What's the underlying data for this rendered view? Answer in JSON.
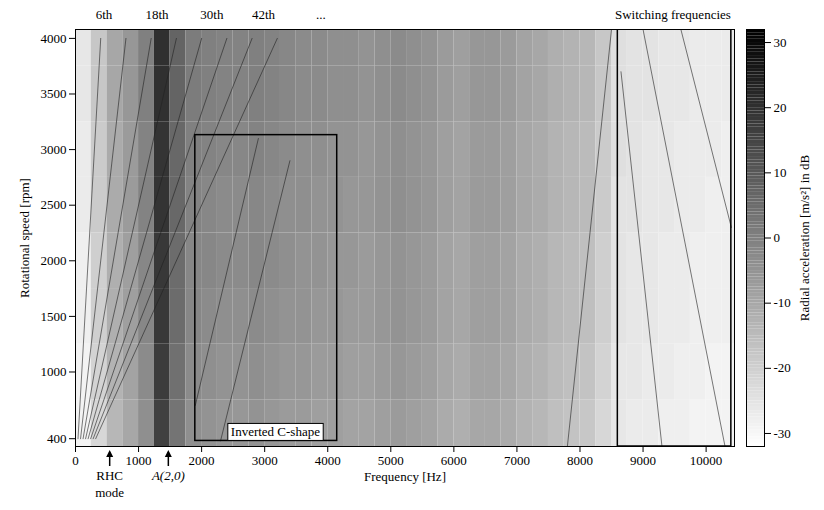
{
  "chart_data": {
    "type": "heatmap",
    "x_label": "Frequency [Hz]",
    "y_label": "Rotational speed [rpm]",
    "xlim": [
      0,
      10450
    ],
    "ylim": [
      330,
      4080
    ],
    "xticks": [
      0,
      1000,
      2000,
      3000,
      4000,
      5000,
      6000,
      7000,
      8000,
      9000,
      10000
    ],
    "yticks": [
      400,
      1000,
      1500,
      2000,
      2500,
      3000,
      3500,
      4000
    ],
    "grid": false,
    "heatmap": {
      "x_bins": [
        0,
        250,
        500,
        750,
        1000,
        1250,
        1500,
        1750,
        2000,
        2250,
        2500,
        2750,
        3000,
        3250,
        3500,
        3750,
        4000,
        4250,
        4500,
        4750,
        5000,
        5250,
        5500,
        5750,
        6000,
        6250,
        6500,
        6750,
        7000,
        7250,
        7500,
        7750,
        8000,
        8250,
        8500,
        8750,
        9000,
        9250,
        9500,
        9750,
        10000,
        10250,
        10500
      ],
      "y_bins": [
        250,
        750,
        1250,
        1750,
        2250,
        2750,
        3250,
        3750,
        4250
      ],
      "values": [
        [
          -29,
          -22,
          -14,
          -10,
          -4,
          16,
          3,
          -4,
          -5,
          -6,
          -6,
          -5,
          -6,
          -7,
          -7,
          -8,
          -8,
          -9,
          -9,
          -8,
          -7,
          -8,
          -9,
          -11,
          -12,
          -10,
          -10,
          -11,
          -13,
          -14,
          -16,
          -17,
          -18,
          -22,
          -26,
          -27,
          -27,
          -28,
          -28,
          -29,
          -29,
          -29
        ],
        [
          -29,
          -21,
          -13,
          -9,
          -3,
          17,
          4,
          -3,
          -4,
          -5,
          -5,
          -4,
          -5,
          -6,
          -6,
          -7,
          -7,
          -8,
          -8,
          -7,
          -6,
          -7,
          -8,
          -10,
          -11,
          -9,
          -9,
          -10,
          -12,
          -13,
          -15,
          -16,
          -17,
          -21,
          -26,
          -26,
          -27,
          -27,
          -28,
          -28,
          -29,
          -29
        ],
        [
          -28,
          -20,
          -12,
          -8,
          -2,
          18,
          5,
          -2,
          -3,
          -4,
          -4,
          -3,
          -4,
          -5,
          -5,
          -6,
          -6,
          -7,
          -7,
          -6,
          -5,
          -6,
          -7,
          -9,
          -10,
          -8,
          -8,
          -9,
          -11,
          -12,
          -14,
          -15,
          -16,
          -20,
          -25,
          -26,
          -26,
          -27,
          -27,
          -28,
          -28,
          -28
        ],
        [
          -28,
          -20,
          -12,
          -8,
          -2,
          18,
          5,
          -2,
          -2,
          -3,
          -3,
          -2,
          -3,
          -4,
          -5,
          -5,
          -6,
          -6,
          -7,
          -6,
          -5,
          -6,
          -7,
          -9,
          -10,
          -8,
          -8,
          -9,
          -11,
          -12,
          -14,
          -15,
          -16,
          -20,
          -25,
          -26,
          -26,
          -27,
          -27,
          -28,
          -28,
          -28
        ],
        [
          -27,
          -19,
          -11,
          -7,
          -1,
          19,
          6,
          -1,
          -2,
          -3,
          -3,
          -2,
          -3,
          -4,
          -4,
          -5,
          -5,
          -6,
          -6,
          -5,
          -4,
          -5,
          -6,
          -8,
          -9,
          -7,
          -7,
          -8,
          -10,
          -11,
          -13,
          -14,
          -15,
          -19,
          -25,
          -25,
          -26,
          -26,
          -27,
          -27,
          -28,
          -28
        ],
        [
          -27,
          -19,
          -11,
          -7,
          -1,
          19,
          6,
          0,
          -1,
          -2,
          -2,
          -1,
          -2,
          -3,
          -4,
          -4,
          -5,
          -5,
          -6,
          -5,
          -4,
          -5,
          -6,
          -8,
          -9,
          -7,
          -7,
          -8,
          -10,
          -11,
          -13,
          -14,
          -15,
          -19,
          -24,
          -25,
          -26,
          -26,
          -27,
          -27,
          -27,
          -28
        ],
        [
          -26,
          -18,
          -10,
          -6,
          0,
          20,
          7,
          1,
          0,
          -1,
          -1,
          0,
          -1,
          -2,
          -3,
          -3,
          -4,
          -4,
          -5,
          -4,
          -3,
          -4,
          -5,
          -7,
          -8,
          -6,
          -6,
          -7,
          -9,
          -10,
          -12,
          -13,
          -14,
          -18,
          -24,
          -25,
          -25,
          -26,
          -26,
          -27,
          -27,
          -27
        ],
        [
          -26,
          -18,
          -10,
          -6,
          0,
          20,
          7,
          1,
          0,
          -1,
          -1,
          0,
          -1,
          -2,
          -3,
          -3,
          -4,
          -4,
          -5,
          -4,
          -3,
          -4,
          -5,
          -7,
          -8,
          -6,
          -6,
          -7,
          -9,
          -10,
          -12,
          -13,
          -14,
          -18,
          -24,
          -25,
          -25,
          -26,
          -26,
          -27,
          -27,
          -27
        ]
      ]
    },
    "colorbar": {
      "label": "Radial acceleration [m/s²] in dB",
      "range": [
        -32,
        32
      ],
      "ticks": [
        -30,
        -20,
        -10,
        0,
        10,
        20,
        30
      ]
    },
    "lines": [
      {
        "x": [
          40,
          400
        ],
        "y": [
          400,
          4000
        ]
      },
      {
        "x": [
          80,
          800
        ],
        "y": [
          400,
          4000
        ]
      },
      {
        "x": [
          120,
          1200
        ],
        "y": [
          400,
          4000
        ]
      },
      {
        "x": [
          160,
          1600
        ],
        "y": [
          400,
          4000
        ]
      },
      {
        "x": [
          200,
          2000
        ],
        "y": [
          400,
          4000
        ]
      },
      {
        "x": [
          240,
          2400
        ],
        "y": [
          400,
          4000
        ]
      },
      {
        "x": [
          280,
          2800
        ],
        "y": [
          400,
          4000
        ]
      },
      {
        "x": [
          320,
          3200
        ],
        "y": [
          400,
          4000
        ]
      },
      {
        "x": [
          1900,
          2900
        ],
        "y": [
          700,
          3100
        ]
      },
      {
        "x": [
          2300,
          3400
        ],
        "y": [
          380,
          2900
        ]
      },
      {
        "x": [
          9000,
          10300
        ],
        "y": [
          4080,
          330
        ]
      },
      {
        "x": [
          8650,
          9300
        ],
        "y": [
          3700,
          330
        ]
      },
      {
        "x": [
          9600,
          10400
        ],
        "y": [
          4080,
          2300
        ]
      },
      {
        "x": [
          7800,
          8500
        ],
        "y": [
          330,
          4080
        ]
      }
    ],
    "order_labels": [
      {
        "label": "6th",
        "x": 460
      },
      {
        "label": "18th",
        "x": 1300
      },
      {
        "label": "30th",
        "x": 2170
      },
      {
        "label": "42th",
        "x": 2990
      },
      {
        "label": "...",
        "x": 3900
      }
    ],
    "regions": [
      {
        "label": "Inverted C-shape",
        "x": [
          1900,
          4150
        ],
        "y": [
          380,
          3130
        ]
      },
      {
        "label": "Switching frequencies",
        "x": [
          8600,
          10400
        ],
        "y": [
          330,
          4080
        ]
      }
    ],
    "markers": [
      {
        "label": "RHC mode",
        "x": 550
      },
      {
        "label": "A(2,0)",
        "x": 1480
      }
    ]
  }
}
